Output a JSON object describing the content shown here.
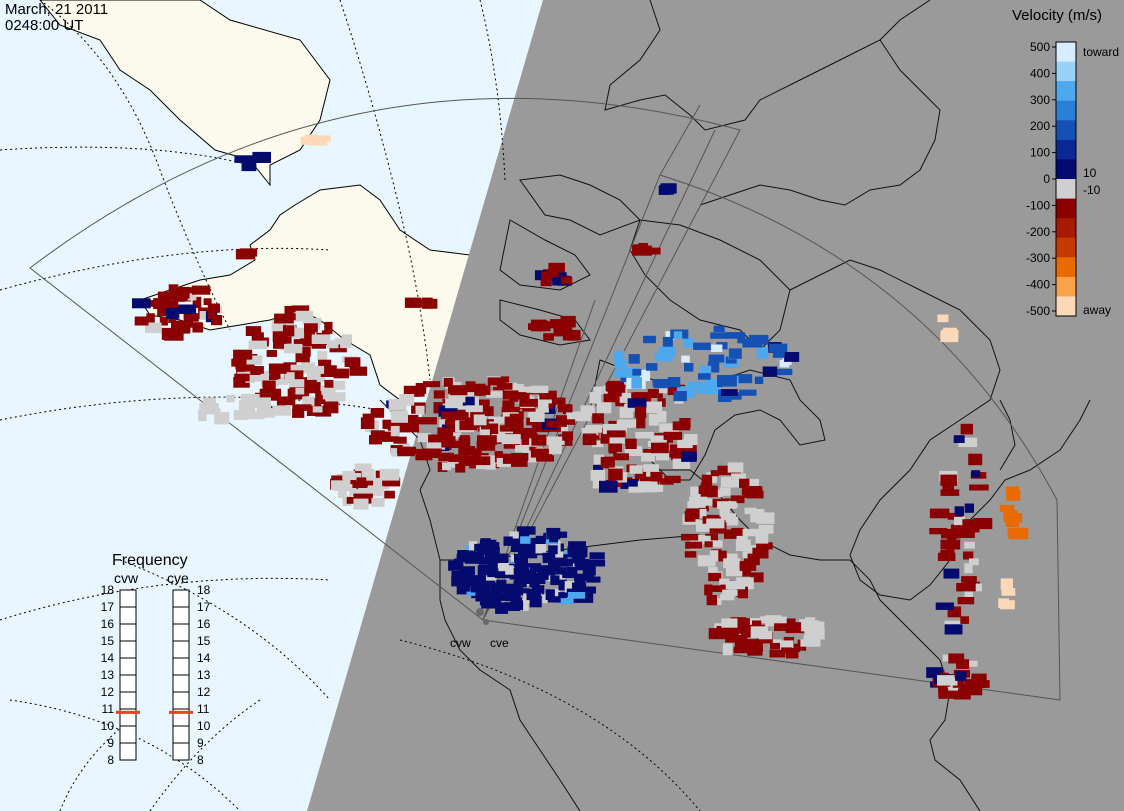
{
  "header": {
    "date": "March, 21 2011",
    "time": "0248:00 UT"
  },
  "legend": {
    "title": "Velocity (m/s)",
    "ticks": [
      "500",
      "400",
      "300",
      "200",
      "100",
      "0",
      "-100",
      "-200",
      "-300",
      "-400",
      "-500"
    ],
    "toward_label": "toward",
    "away_label": "away",
    "pos_threshold": "10",
    "neg_threshold": "-10",
    "colors": [
      "#d7ecff",
      "#9ad2f7",
      "#4da8ee",
      "#2a7fd9",
      "#1550b4",
      "#0b2894",
      "#050a6e",
      "#cfcfcf",
      "#8b0000",
      "#a71a00",
      "#c53a00",
      "#e86a00",
      "#f8a24a",
      "#fbd9b8"
    ]
  },
  "frequency": {
    "title": "Frequency",
    "radars": [
      {
        "name": "cvw",
        "value": 10.8
      },
      {
        "name": "cve",
        "value": 10.8
      }
    ],
    "scale": [
      "8",
      "9",
      "10",
      "11",
      "12",
      "13",
      "14",
      "15",
      "16",
      "17",
      "18"
    ],
    "marker_color": "#e8451c"
  },
  "stations": {
    "west": "cvw",
    "east": "cve"
  },
  "colors": {
    "ocean": "#e8f6ff",
    "land": "#fbfaec",
    "night": "#9a9a9a",
    "groundscatter": "#cfcfcf"
  }
}
